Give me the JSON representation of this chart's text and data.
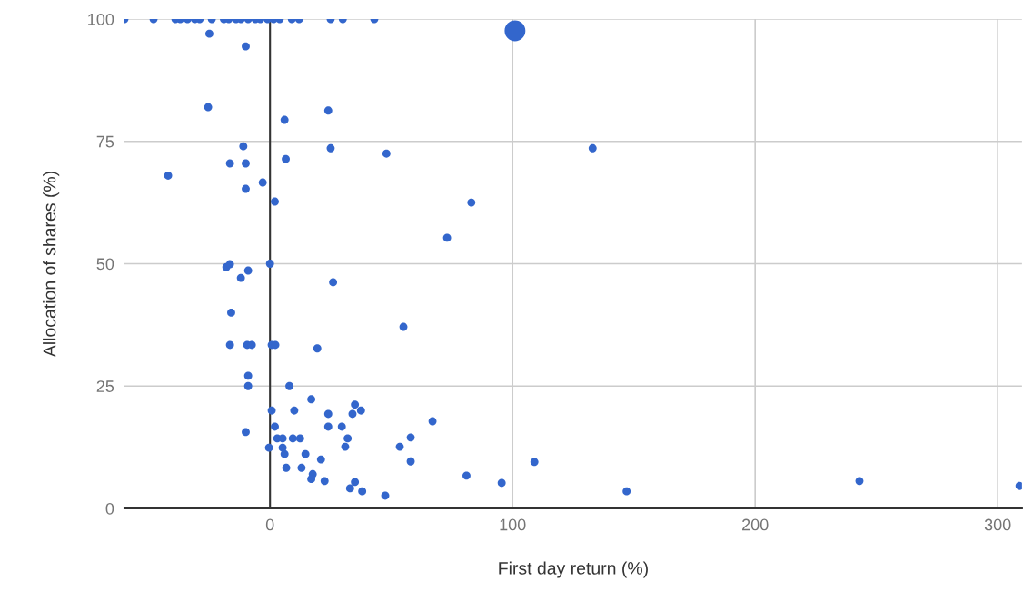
{
  "chart_data": {
    "type": "bubble",
    "xlabel": "First day return (%)",
    "ylabel": "Allocation of shares (%)",
    "xlim": [
      -60,
      310
    ],
    "ylim": [
      0,
      100
    ],
    "xticks": [
      0,
      100,
      200,
      300
    ],
    "yticks": [
      0,
      25,
      50,
      75,
      100
    ],
    "grid": true,
    "series": [
      {
        "color": "#3366cc",
        "x": [
          -60,
          -48,
          -39,
          -37,
          -34,
          -31,
          -29,
          -24,
          -19,
          -17,
          -14,
          -12,
          -9,
          -6,
          -4,
          -1,
          1.5,
          4,
          9,
          12,
          25,
          30,
          43,
          -25,
          -10,
          -25.5,
          6,
          24,
          -11,
          25,
          -16.5,
          -10,
          6.5,
          48,
          133,
          -42,
          -3,
          -10,
          2,
          83,
          73,
          -18,
          -16.5,
          -9,
          -12,
          0,
          26,
          -16,
          55,
          -16.5,
          -9.4,
          -7.5,
          0.7,
          2.2,
          19.5,
          -9,
          -9,
          8,
          17,
          35,
          37.5,
          0.7,
          10,
          24,
          34,
          67,
          2,
          24,
          29.6,
          -10,
          3,
          5.2,
          9.4,
          12.4,
          32,
          58,
          -0.4,
          5.2,
          31,
          53.5,
          6,
          14.6,
          21,
          58,
          109,
          6.7,
          13,
          17.6,
          17,
          22.5,
          81,
          35,
          33,
          38,
          47.5,
          95.5,
          147,
          243,
          309,
          101
        ],
        "values": [
          100,
          100,
          100,
          100,
          100,
          100,
          100,
          100,
          100,
          100,
          100,
          100,
          100,
          100,
          100,
          100,
          100,
          100,
          100,
          100,
          100,
          100,
          100,
          97,
          94.4,
          82,
          79.4,
          81.3,
          74,
          73.6,
          70.5,
          70.5,
          71.4,
          72.5,
          73.6,
          68,
          66.6,
          65.3,
          62.7,
          62.5,
          55.3,
          49.3,
          49.9,
          48.6,
          47.1,
          50,
          46.2,
          40,
          37.1,
          33.4,
          33.4,
          33.4,
          33.4,
          33.4,
          32.7,
          27.1,
          25,
          25,
          22.3,
          21.2,
          20,
          20,
          20,
          19.3,
          19.3,
          17.8,
          16.7,
          16.7,
          16.7,
          15.6,
          14.3,
          14.3,
          14.3,
          14.3,
          14.3,
          14.5,
          12.4,
          12.4,
          12.6,
          12.6,
          11.1,
          11.1,
          10,
          9.6,
          9.5,
          8.3,
          8.3,
          7,
          6,
          5.6,
          6.7,
          5.4,
          4.1,
          3.5,
          2.6,
          5.2,
          3.5,
          5.6,
          4.6,
          97.6
        ],
        "sizes": [
          0.15,
          0.15,
          0.15,
          0.15,
          0.15,
          0.15,
          0.15,
          0.15,
          0.15,
          0.15,
          0.15,
          0.15,
          0.15,
          0.15,
          0.15,
          0.15,
          0.15,
          0.15,
          0.15,
          0.15,
          0.15,
          0.15,
          0.15,
          0.15,
          0.15,
          0.15,
          0.15,
          0.15,
          0.15,
          0.15,
          0.15,
          0.15,
          0.15,
          0.15,
          0.15,
          0.15,
          0.15,
          0.15,
          0.15,
          0.15,
          0.15,
          0.15,
          0.15,
          0.15,
          0.15,
          0.15,
          0.15,
          0.15,
          0.15,
          0.15,
          0.15,
          0.15,
          0.15,
          0.15,
          0.15,
          0.15,
          0.15,
          0.15,
          0.15,
          0.15,
          0.15,
          0.15,
          0.15,
          0.15,
          0.15,
          0.15,
          0.15,
          0.15,
          0.15,
          0.15,
          0.15,
          0.15,
          0.15,
          0.15,
          0.15,
          0.15,
          0.15,
          0.15,
          0.15,
          0.15,
          0.15,
          0.15,
          0.15,
          0.15,
          0.15,
          0.15,
          0.15,
          0.15,
          0.15,
          0.15,
          0.15,
          0.15,
          0.15,
          0.15,
          0.15,
          0.15,
          0.15,
          0.15,
          0.15,
          1
        ]
      }
    ]
  }
}
